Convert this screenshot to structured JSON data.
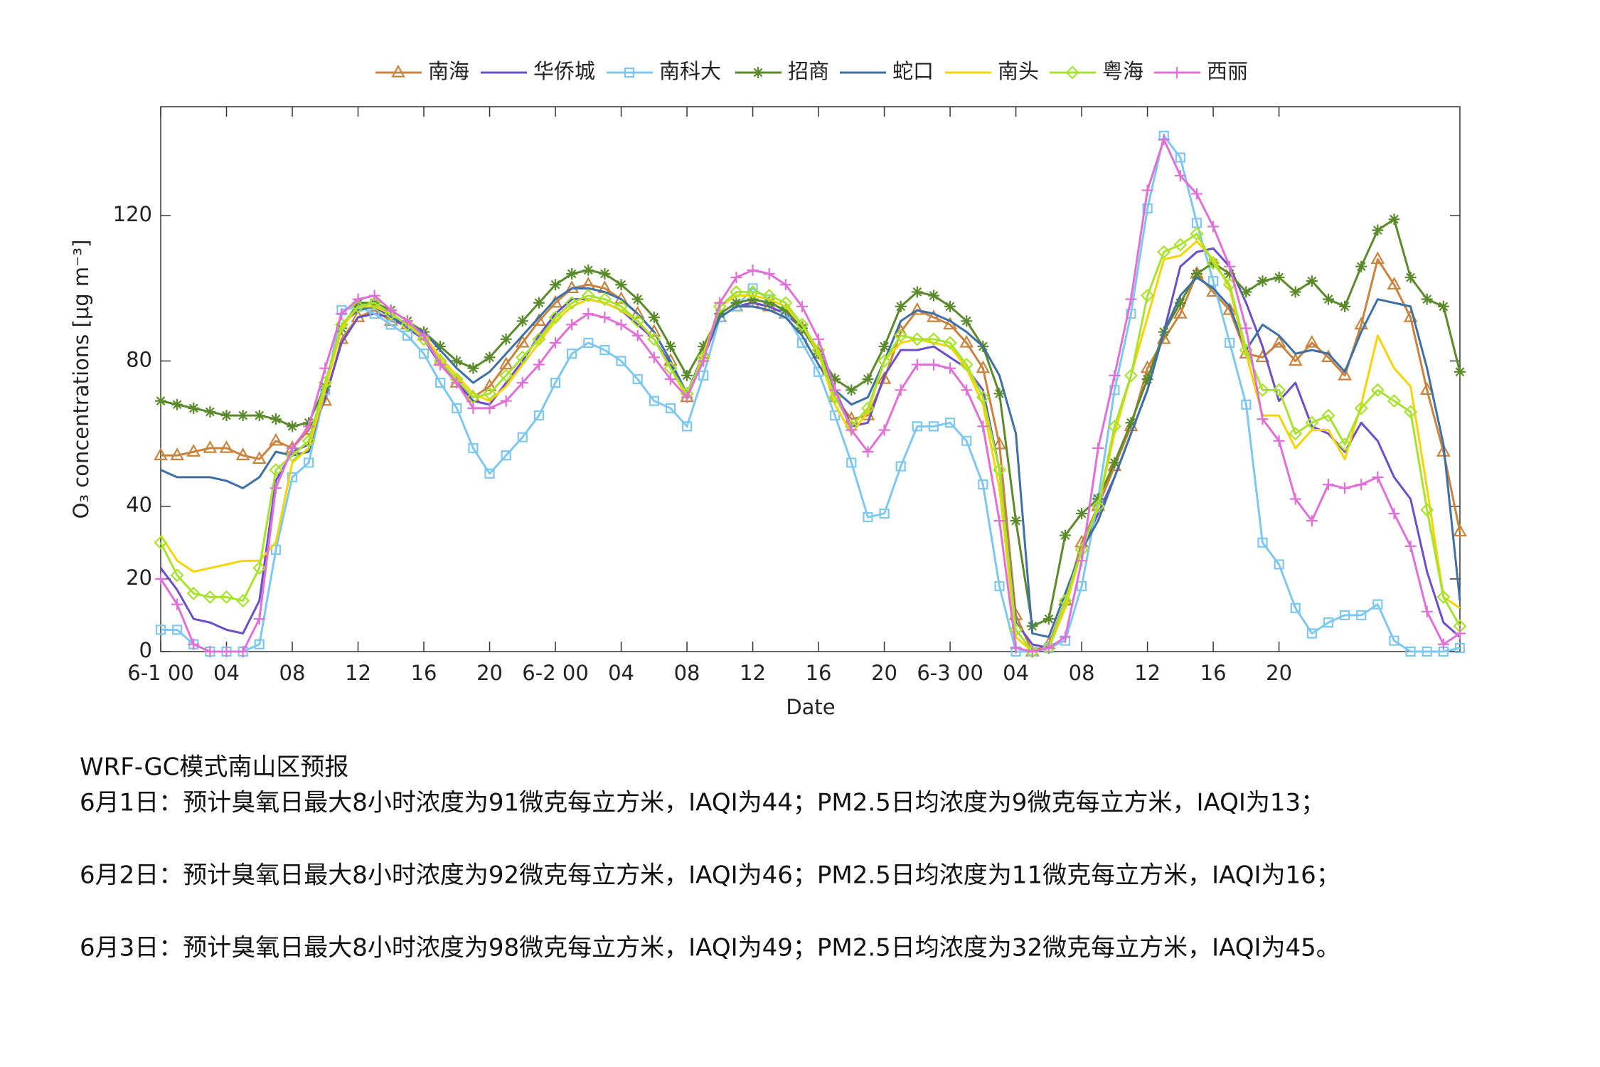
{
  "chart_data": {
    "type": "line",
    "x_label": "Date",
    "y_label": "O₃ concentrations [μg m⁻³]",
    "x": [
      0,
      1,
      2,
      3,
      4,
      5,
      6,
      7,
      8,
      9,
      10,
      11,
      12,
      13,
      14,
      15,
      16,
      17,
      18,
      19,
      20,
      21,
      22,
      23,
      24,
      25,
      26,
      27,
      28,
      29,
      30,
      31,
      32,
      33,
      34,
      35,
      36,
      37,
      38,
      39,
      40,
      41,
      42,
      43,
      44,
      45,
      46,
      47,
      48,
      49,
      50,
      51,
      52,
      53,
      54,
      55,
      56,
      57,
      58,
      59,
      60,
      61,
      62,
      63,
      64,
      65,
      66,
      67,
      68,
      69,
      70,
      71,
      72,
      73,
      74,
      75,
      76,
      77,
      78,
      79
    ],
    "xlim": [
      0,
      79
    ],
    "xticks": [
      {
        "value": 0,
        "label": "6-1 00"
      },
      {
        "value": 4,
        "label": "04"
      },
      {
        "value": 8,
        "label": "08"
      },
      12,
      16,
      20,
      {
        "value": 24,
        "label": "6-2 00"
      },
      {
        "value": 28,
        "label": "04"
      },
      {
        "value": 32,
        "label": "08"
      },
      {
        "value": 36,
        "label": "12"
      },
      {
        "value": 40,
        "label": "16"
      },
      {
        "value": 44,
        "label": "20"
      },
      {
        "value": 48,
        "label": "6-3 00"
      },
      {
        "value": 52,
        "label": "04"
      },
      {
        "value": 56,
        "label": "08"
      },
      {
        "value": 60,
        "label": "12"
      },
      {
        "value": 64,
        "label": "16"
      },
      {
        "value": 68,
        "label": "20"
      }
    ],
    "ylim": [
      0,
      150
    ],
    "yticks": [
      0,
      20,
      40,
      80,
      120
    ],
    "series": [
      {
        "name": "南海",
        "color": "#c8843e",
        "marker": "triangle",
        "values": [
          54,
          54,
          55,
          56,
          56,
          54,
          53,
          58,
          56,
          61,
          69,
          86,
          92,
          94,
          91,
          90,
          87,
          80,
          74,
          70,
          73,
          79,
          85,
          91,
          96,
          100,
          101,
          100,
          97,
          93,
          88,
          80,
          70,
          82,
          92,
          95,
          96,
          95,
          93,
          89,
          82,
          70,
          64,
          65,
          75,
          88,
          94,
          92,
          90,
          85,
          78,
          57,
          10,
          0,
          2,
          14,
          30,
          40,
          51,
          62,
          78,
          86,
          93,
          104,
          99,
          94,
          82,
          81,
          85,
          80,
          85,
          81,
          76,
          90,
          108,
          101,
          92,
          72,
          55,
          33
        ]
      },
      {
        "name": "华侨城",
        "color": "#6a4fc6",
        "marker": "none",
        "values": [
          23,
          17,
          9,
          8,
          6,
          5,
          14,
          47,
          55,
          57,
          70,
          85,
          92,
          93,
          92,
          89,
          86,
          79,
          74,
          69,
          68,
          74,
          80,
          87,
          93,
          97,
          97,
          96,
          94,
          90,
          86,
          79,
          70,
          81,
          92,
          95,
          96,
          95,
          93,
          89,
          83,
          72,
          62,
          63,
          76,
          83,
          83,
          84,
          81,
          78,
          72,
          50,
          8,
          2,
          1,
          12,
          28,
          38,
          48,
          60,
          72,
          88,
          106,
          110,
          111,
          106,
          96,
          84,
          69,
          74,
          62,
          60,
          55,
          63,
          58,
          48,
          42,
          22,
          8,
          4
        ]
      },
      {
        "name": "南科大",
        "color": "#7ec8f0",
        "marker": "square",
        "values": [
          6,
          6,
          2,
          0,
          0,
          0,
          2,
          28,
          48,
          52,
          72,
          94,
          95,
          93,
          90,
          87,
          82,
          74,
          67,
          56,
          49,
          54,
          59,
          65,
          74,
          82,
          85,
          83,
          80,
          75,
          69,
          67,
          62,
          76,
          92,
          95,
          100,
          97,
          93,
          85,
          77,
          65,
          52,
          37,
          38,
          51,
          62,
          62,
          63,
          58,
          46,
          18,
          0,
          0,
          1,
          3,
          18,
          42,
          72,
          93,
          122,
          142,
          136,
          118,
          102,
          85,
          68,
          30,
          24,
          12,
          5,
          8,
          10,
          10,
          13,
          3,
          0,
          0,
          0,
          1
        ]
      },
      {
        "name": "招商",
        "color": "#5a8a2a",
        "marker": "star",
        "values": [
          69,
          68,
          67,
          66,
          65,
          65,
          65,
          64,
          62,
          63,
          73,
          89,
          96,
          96,
          94,
          91,
          88,
          84,
          80,
          78,
          81,
          86,
          91,
          96,
          101,
          104,
          105,
          104,
          101,
          97,
          92,
          84,
          76,
          84,
          93,
          96,
          97,
          96,
          94,
          89,
          82,
          75,
          72,
          75,
          84,
          95,
          99,
          98,
          95,
          91,
          84,
          71,
          36,
          7,
          9,
          32,
          38,
          42,
          52,
          63,
          75,
          88,
          96,
          104,
          107,
          104,
          99,
          102,
          103,
          99,
          102,
          97,
          95,
          106,
          116,
          119,
          103,
          97,
          95,
          77
        ]
      },
      {
        "name": "蛇口",
        "color": "#3e6fa5",
        "marker": "none",
        "values": [
          50,
          48,
          48,
          48,
          47,
          45,
          48,
          55,
          54,
          55,
          72,
          90,
          94,
          95,
          92,
          90,
          88,
          83,
          78,
          74,
          77,
          82,
          87,
          92,
          97,
          100,
          100,
          99,
          97,
          93,
          88,
          80,
          71,
          82,
          92,
          95,
          95,
          94,
          92,
          87,
          79,
          72,
          68,
          70,
          80,
          91,
          94,
          93,
          91,
          88,
          84,
          76,
          60,
          5,
          4,
          16,
          28,
          36,
          48,
          60,
          72,
          88,
          98,
          103,
          100,
          95,
          83,
          90,
          87,
          82,
          83,
          82,
          77,
          88,
          97,
          96,
          95,
          78,
          57,
          14
        ]
      },
      {
        "name": "南头",
        "color": "#f5d400",
        "marker": "none",
        "values": [
          32,
          25,
          22,
          23,
          24,
          25,
          25,
          30,
          52,
          56,
          72,
          89,
          95,
          95,
          93,
          90,
          87,
          81,
          76,
          71,
          69,
          73,
          79,
          85,
          91,
          95,
          97,
          96,
          94,
          91,
          86,
          78,
          70,
          82,
          95,
          98,
          98,
          97,
          95,
          90,
          82,
          68,
          60,
          66,
          80,
          85,
          86,
          85,
          84,
          78,
          68,
          45,
          4,
          0,
          1,
          12,
          28,
          40,
          60,
          76,
          92,
          108,
          109,
          113,
          108,
          100,
          82,
          65,
          65,
          56,
          61,
          61,
          53,
          68,
          87,
          78,
          73,
          45,
          15,
          12
        ]
      },
      {
        "name": "粤海",
        "color": "#a6e22e",
        "marker": "diamond",
        "values": [
          30,
          21,
          16,
          15,
          15,
          14,
          23,
          50,
          54,
          58,
          74,
          90,
          95,
          96,
          93,
          90,
          86,
          80,
          75,
          70,
          71,
          76,
          81,
          86,
          92,
          96,
          98,
          97,
          95,
          91,
          86,
          78,
          71,
          81,
          95,
          99,
          99,
          98,
          96,
          90,
          83,
          70,
          62,
          67,
          80,
          87,
          86,
          86,
          85,
          79,
          70,
          50,
          6,
          0,
          1,
          14,
          28,
          40,
          62,
          76,
          98,
          110,
          112,
          115,
          107,
          101,
          83,
          72,
          72,
          60,
          63,
          65,
          57,
          67,
          72,
          69,
          66,
          39,
          15,
          7
        ]
      },
      {
        "name": "西丽",
        "color": "#e070d8",
        "marker": "plus",
        "values": [
          20,
          13,
          2,
          0,
          0,
          0,
          9,
          45,
          56,
          62,
          78,
          93,
          97,
          98,
          94,
          91,
          87,
          79,
          74,
          67,
          67,
          69,
          74,
          79,
          85,
          90,
          93,
          92,
          90,
          87,
          81,
          75,
          70,
          80,
          96,
          103,
          105,
          104,
          101,
          95,
          86,
          72,
          61,
          55,
          61,
          72,
          79,
          79,
          78,
          72,
          62,
          36,
          1,
          0,
          1,
          4,
          25,
          56,
          76,
          97,
          127,
          141,
          131,
          126,
          117,
          106,
          89,
          64,
          58,
          42,
          36,
          46,
          45,
          46,
          48,
          38,
          29,
          11,
          2,
          5
        ]
      }
    ]
  },
  "notes": [
    "WRF-GC模式南山区预报",
    "6月1日：预计臭氧日最大8小时浓度为91微克每立方米，IAQI为44；PM2.5日均浓度为9微克每立方米，IAQI为13；",
    "6月2日：预计臭氧日最大8小时浓度为92微克每立方米，IAQI为46；PM2.5日均浓度为11微克每立方米，IAQI为16；",
    "6月3日：预计臭氧日最大8小时浓度为98微克每立方米，IAQI为49；PM2.5日均浓度为32微克每立方米，IAQI为45。"
  ]
}
